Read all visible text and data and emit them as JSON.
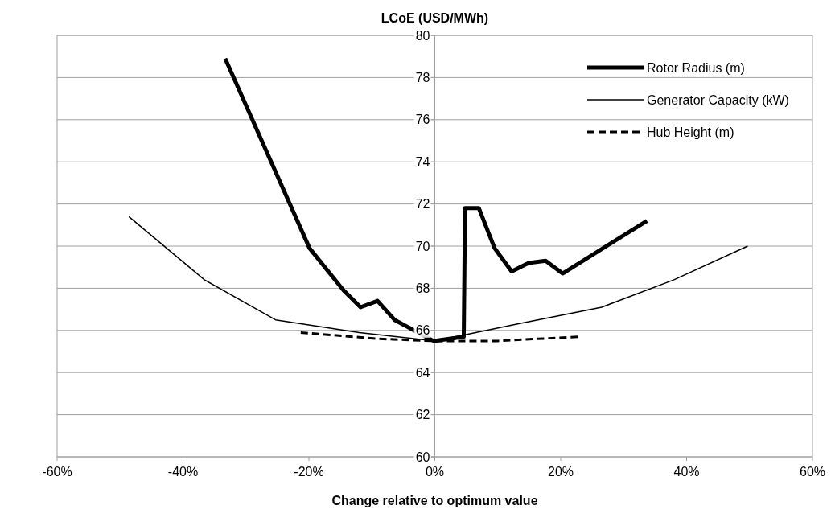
{
  "chart_data": {
    "type": "line",
    "title": "LCoE (USD/MWh)",
    "xlabel": "Change relative to optimum value",
    "xlim": [
      -60,
      60
    ],
    "xticks": [
      {
        "value": -60,
        "label": "-60%"
      },
      {
        "value": -40,
        "label": "-40%"
      },
      {
        "value": -20,
        "label": "-20%"
      },
      {
        "value": 0,
        "label": "0%"
      },
      {
        "value": 20,
        "label": "20%"
      },
      {
        "value": 40,
        "label": "40%"
      },
      {
        "value": 60,
        "label": "60%"
      }
    ],
    "ylim": [
      60,
      80
    ],
    "yticks": [
      60,
      62,
      64,
      66,
      68,
      70,
      72,
      74,
      76,
      78,
      80
    ],
    "grid": "y",
    "legend": "top right",
    "series": [
      {
        "name": "Rotor Radius (m)",
        "color": "#000000",
        "line_style": "solid",
        "x": [
          -33.3,
          -19.9,
          -14.5,
          -11.8,
          -9.1,
          -6.4,
          -0.2,
          4.6,
          4.8,
          7.0,
          9.5,
          12.2,
          14.9,
          17.6,
          20.3,
          33.7
        ],
        "values": [
          78.9,
          69.9,
          67.9,
          67.1,
          67.4,
          66.5,
          65.5,
          65.7,
          71.8,
          71.8,
          69.9,
          68.8,
          69.2,
          69.3,
          68.7,
          71.2
        ]
      },
      {
        "name": "Generator Capacity (kW)",
        "color": "#000000",
        "line_style": "solid",
        "x": [
          -48.6,
          -36.6,
          -25.3,
          -12,
          0,
          13,
          26.5,
          38.0,
          49.7
        ],
        "values": [
          71.4,
          68.4,
          66.5,
          65.9,
          65.5,
          66.3,
          67.1,
          68.4,
          70.0
        ]
      },
      {
        "name": "Hub Height (m)",
        "color": "#000000",
        "line_style": "dashed",
        "x": [
          -21.3,
          -8.9,
          0,
          10,
          22.8
        ],
        "values": [
          65.9,
          65.6,
          65.5,
          65.5,
          65.7
        ]
      }
    ]
  }
}
